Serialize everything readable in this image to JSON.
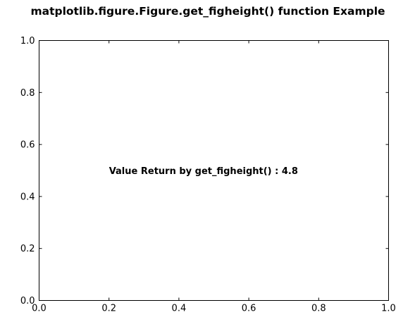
{
  "chart_data": {
    "type": "scatter",
    "title": "matplotlib.figure.Figure.get_figheight() function Example",
    "xlabel": "",
    "ylabel": "",
    "xlim": [
      0.0,
      1.0
    ],
    "ylim": [
      0.0,
      1.0
    ],
    "xticks": [
      0.0,
      0.2,
      0.4,
      0.6,
      0.8,
      1.0
    ],
    "yticks": [
      0.0,
      0.2,
      0.4,
      0.6,
      0.8,
      1.0
    ],
    "xtick_labels": [
      "0.0",
      "0.2",
      "0.4",
      "0.6",
      "0.8",
      "1.0"
    ],
    "ytick_labels": [
      "0.0",
      "0.2",
      "0.4",
      "0.6",
      "0.8",
      "1.0"
    ],
    "grid": false,
    "series": [],
    "annotations": [
      {
        "text": "Value Return by get_figheight() : 4.8",
        "x": 0.2,
        "y": 0.5
      }
    ],
    "colors": {
      "axes": "#000000",
      "text": "#000000",
      "background": "#ffffff"
    }
  }
}
